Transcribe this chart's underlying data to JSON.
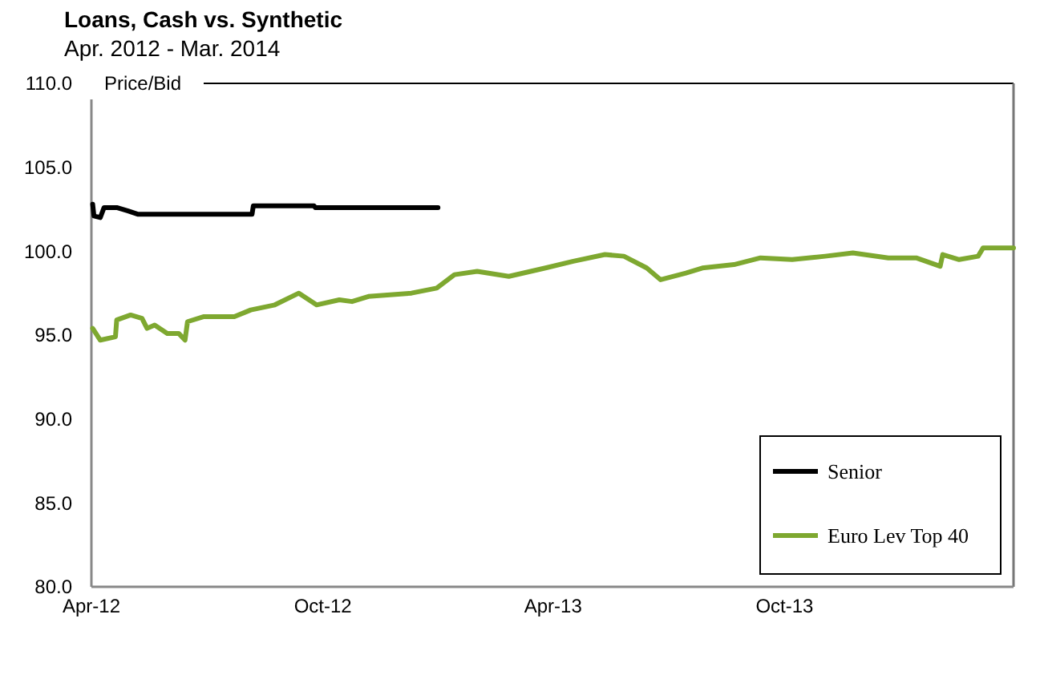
{
  "chart_data": {
    "type": "line",
    "title": "Loans, Cash vs. Synthetic",
    "subtitle": "Apr. 2012 - Mar. 2014",
    "ylabel": "Price/Bid",
    "xlim": [
      "2012-04-01",
      "2014-03-31"
    ],
    "xticks": [
      {
        "value": "2012-04-01",
        "label": "Apr-12"
      },
      {
        "value": "2012-10-01",
        "label": "Oct-12"
      },
      {
        "value": "2013-04-01",
        "label": "Apr-13"
      },
      {
        "value": "2013-10-01",
        "label": "Oct-13"
      }
    ],
    "ylim": [
      80,
      110
    ],
    "yticks": [
      {
        "value": 80,
        "label": "80.0"
      },
      {
        "value": 85,
        "label": "85.0"
      },
      {
        "value": 90,
        "label": "90.0"
      },
      {
        "value": 95,
        "label": "95.0"
      },
      {
        "value": 100,
        "label": "100.0"
      },
      {
        "value": 105,
        "label": "105.0"
      },
      {
        "value": 110,
        "label": "110.0"
      }
    ],
    "grid": false,
    "legend": "bottom right",
    "marker": "none",
    "line_style": "solid",
    "series": [
      {
        "name": "Senior",
        "color": "#000000",
        "x": [
          "2012-04-02",
          "2012-04-03",
          "2012-04-08",
          "2012-04-11",
          "2012-04-21",
          "2012-04-30",
          "2012-05-08",
          "2012-05-17",
          "2012-08-06",
          "2012-08-07",
          "2012-09-24",
          "2012-09-25",
          "2012-12-31"
        ],
        "values": [
          102.8,
          102.1,
          102.0,
          102.6,
          102.6,
          102.4,
          102.2,
          102.2,
          102.2,
          102.7,
          102.7,
          102.6,
          102.6
        ]
      },
      {
        "name": "Euro Lev Top 40",
        "color": "#7ea830",
        "x": [
          "2012-04-02",
          "2012-04-08",
          "2012-04-20",
          "2012-04-21",
          "2012-05-02",
          "2012-05-11",
          "2012-05-15",
          "2012-05-21",
          "2012-05-31",
          "2012-06-09",
          "2012-06-14",
          "2012-06-16",
          "2012-06-29",
          "2012-07-23",
          "2012-08-05",
          "2012-08-24",
          "2012-09-12",
          "2012-09-26",
          "2012-10-14",
          "2012-10-24",
          "2012-11-06",
          "2012-12-10",
          "2012-12-30",
          "2013-01-13",
          "2013-01-31",
          "2013-02-25",
          "2013-03-26",
          "2013-04-17",
          "2013-05-12",
          "2013-05-27",
          "2013-06-14",
          "2013-06-25",
          "2013-07-15",
          "2013-07-28",
          "2013-08-22",
          "2013-09-12",
          "2013-10-07",
          "2013-11-02",
          "2013-11-24",
          "2013-12-22",
          "2014-01-13",
          "2014-02-01",
          "2014-02-03",
          "2014-02-16",
          "2014-03-03",
          "2014-03-07",
          "2014-03-31"
        ],
        "values": [
          95.4,
          94.7,
          94.9,
          95.9,
          96.2,
          96.0,
          95.4,
          95.6,
          95.1,
          95.1,
          94.7,
          95.8,
          96.1,
          96.1,
          96.5,
          96.8,
          97.5,
          96.8,
          97.1,
          97.0,
          97.3,
          97.5,
          97.8,
          98.6,
          98.8,
          98.5,
          99.0,
          99.4,
          99.8,
          99.7,
          99.0,
          98.3,
          98.7,
          99.0,
          99.2,
          99.6,
          99.5,
          99.7,
          99.9,
          99.6,
          99.6,
          99.1,
          99.8,
          99.5,
          99.7,
          100.2,
          100.2
        ]
      }
    ]
  }
}
